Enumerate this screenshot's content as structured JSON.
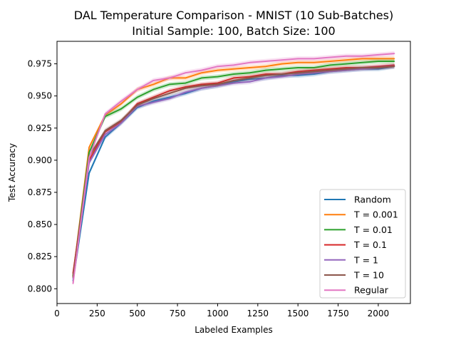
{
  "chart_data": {
    "type": "line",
    "title": "DAL Temperature Comparison - MNIST (10 Sub-Batches)",
    "subtitle": "Initial Sample: 100, Batch Size: 100",
    "xlabel": "Labeled Examples",
    "ylabel": "Test Accuracy",
    "xlim": [
      0,
      2200
    ],
    "ylim": [
      0.7885,
      0.9925
    ],
    "xticks": [
      0,
      250,
      500,
      750,
      1000,
      1250,
      1500,
      1750,
      2000
    ],
    "xtick_labels": [
      "0",
      "250",
      "500",
      "750",
      "1000",
      "1250",
      "1500",
      "1750",
      "2000"
    ],
    "yticks": [
      0.8,
      0.825,
      0.85,
      0.875,
      0.9,
      0.925,
      0.95,
      0.975
    ],
    "ytick_labels": [
      "0.800",
      "0.825",
      "0.850",
      "0.875",
      "0.900",
      "0.925",
      "0.950",
      "0.975"
    ],
    "grid": false,
    "legend_position": "lower-right",
    "x": [
      100,
      200,
      300,
      400,
      500,
      600,
      700,
      800,
      900,
      1000,
      1100,
      1200,
      1300,
      1400,
      1500,
      1600,
      1700,
      1800,
      1900,
      2000,
      2100
    ],
    "series": [
      {
        "name": "Random",
        "color": "#1f77b4",
        "values": [
          0.806,
          0.89,
          0.918,
          0.929,
          0.941,
          0.946,
          0.949,
          0.952,
          0.956,
          0.958,
          0.961,
          0.963,
          0.964,
          0.966,
          0.966,
          0.967,
          0.969,
          0.97,
          0.971,
          0.971,
          0.973
        ]
      },
      {
        "name": "T = 0.001",
        "color": "#ff7f0e",
        "values": [
          0.81,
          0.91,
          0.935,
          0.944,
          0.955,
          0.959,
          0.964,
          0.964,
          0.968,
          0.97,
          0.971,
          0.972,
          0.973,
          0.975,
          0.976,
          0.976,
          0.977,
          0.978,
          0.979,
          0.979,
          0.979
        ]
      },
      {
        "name": "T = 0.01",
        "color": "#2ca02c",
        "values": [
          0.81,
          0.906,
          0.934,
          0.94,
          0.949,
          0.955,
          0.959,
          0.96,
          0.964,
          0.965,
          0.967,
          0.968,
          0.97,
          0.971,
          0.972,
          0.972,
          0.974,
          0.975,
          0.976,
          0.977,
          0.977
        ]
      },
      {
        "name": "T = 0.1",
        "color": "#d62728",
        "values": [
          0.812,
          0.9,
          0.922,
          0.93,
          0.944,
          0.949,
          0.954,
          0.957,
          0.959,
          0.96,
          0.964,
          0.965,
          0.967,
          0.967,
          0.969,
          0.97,
          0.971,
          0.972,
          0.972,
          0.973,
          0.974
        ]
      },
      {
        "name": "T = 1",
        "color": "#9467bd",
        "values": [
          0.808,
          0.898,
          0.92,
          0.929,
          0.942,
          0.945,
          0.948,
          0.953,
          0.956,
          0.958,
          0.96,
          0.961,
          0.964,
          0.965,
          0.967,
          0.968,
          0.969,
          0.97,
          0.971,
          0.972,
          0.973
        ]
      },
      {
        "name": "T = 10",
        "color": "#8c564b",
        "values": [
          0.809,
          0.903,
          0.923,
          0.931,
          0.943,
          0.948,
          0.952,
          0.956,
          0.958,
          0.959,
          0.962,
          0.964,
          0.966,
          0.967,
          0.968,
          0.969,
          0.97,
          0.971,
          0.972,
          0.972,
          0.973
        ]
      },
      {
        "name": "Regular",
        "color": "#e377c2",
        "values": [
          0.804,
          0.902,
          0.936,
          0.946,
          0.955,
          0.962,
          0.964,
          0.968,
          0.97,
          0.973,
          0.974,
          0.976,
          0.977,
          0.978,
          0.979,
          0.979,
          0.98,
          0.981,
          0.981,
          0.982,
          0.983
        ]
      }
    ]
  }
}
